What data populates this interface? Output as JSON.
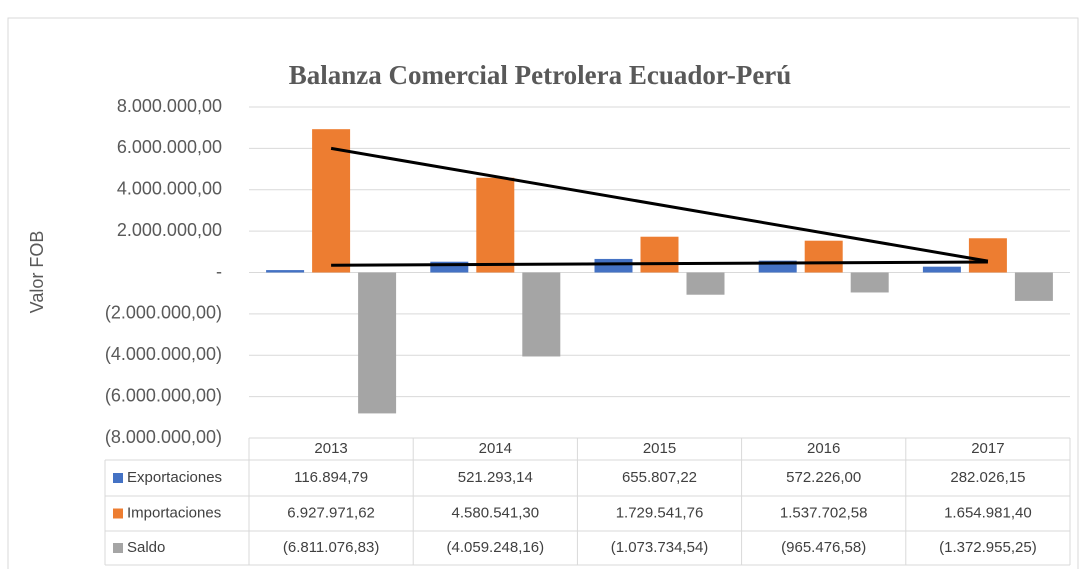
{
  "chart_data": {
    "type": "bar",
    "title": "Balanza Comercial Petrolera Ecuador-Perú",
    "y_label": "Valor FOB",
    "categories": [
      "2013",
      "2014",
      "2015",
      "2016",
      "2017"
    ],
    "series": [
      {
        "name": "Exportaciones",
        "color": "#4472c4",
        "values": [
          116894.79,
          521293.14,
          655807.22,
          572226.0,
          282026.15
        ],
        "value_labels": [
          "116.894,79",
          "521.293,14",
          "655.807,22",
          "572.226,00",
          "282.026,15"
        ]
      },
      {
        "name": "Importaciones",
        "color": "#ed7d31",
        "values": [
          6927971.62,
          4580541.3,
          1729541.76,
          1537702.58,
          1654981.4
        ],
        "value_labels": [
          "6.927.971,62",
          "4.580.541,30",
          "1.729.541,76",
          "1.537.702,58",
          "1.654.981,40"
        ]
      },
      {
        "name": "Saldo",
        "color": "#a5a5a5",
        "values": [
          -6811076.83,
          -4059248.16,
          -1073734.54,
          -965476.58,
          -1372955.25
        ],
        "value_labels": [
          "(6.811.076,83)",
          "(4.059.248,16)",
          "(1.073.734,54)",
          "(965.476,58)",
          "(1.372.955,25)"
        ]
      }
    ],
    "trend_lines": [
      {
        "color": "#000000",
        "x": [
          "2013",
          "2017"
        ],
        "values": [
          6000000,
          550000
        ]
      },
      {
        "color": "#000000",
        "x": [
          "2013",
          "2017"
        ],
        "values": [
          350000,
          510000
        ]
      }
    ],
    "ylim": [
      -8000000,
      8000000
    ],
    "yticks": [
      {
        "value": -8000000,
        "label": "(8.000.000,00)"
      },
      {
        "value": -6000000,
        "label": "(6.000.000,00)"
      },
      {
        "value": -4000000,
        "label": "(4.000.000,00)"
      },
      {
        "value": -2000000,
        "label": "(2.000.000,00)"
      },
      {
        "value": 0,
        "label": "-"
      },
      {
        "value": 2000000,
        "label": "2.000.000,00"
      },
      {
        "value": 4000000,
        "label": "4.000.000,00"
      },
      {
        "value": 6000000,
        "label": "6.000.000,00"
      },
      {
        "value": 8000000,
        "label": "8.000.000,00"
      }
    ],
    "grid": true,
    "legend": "table"
  }
}
